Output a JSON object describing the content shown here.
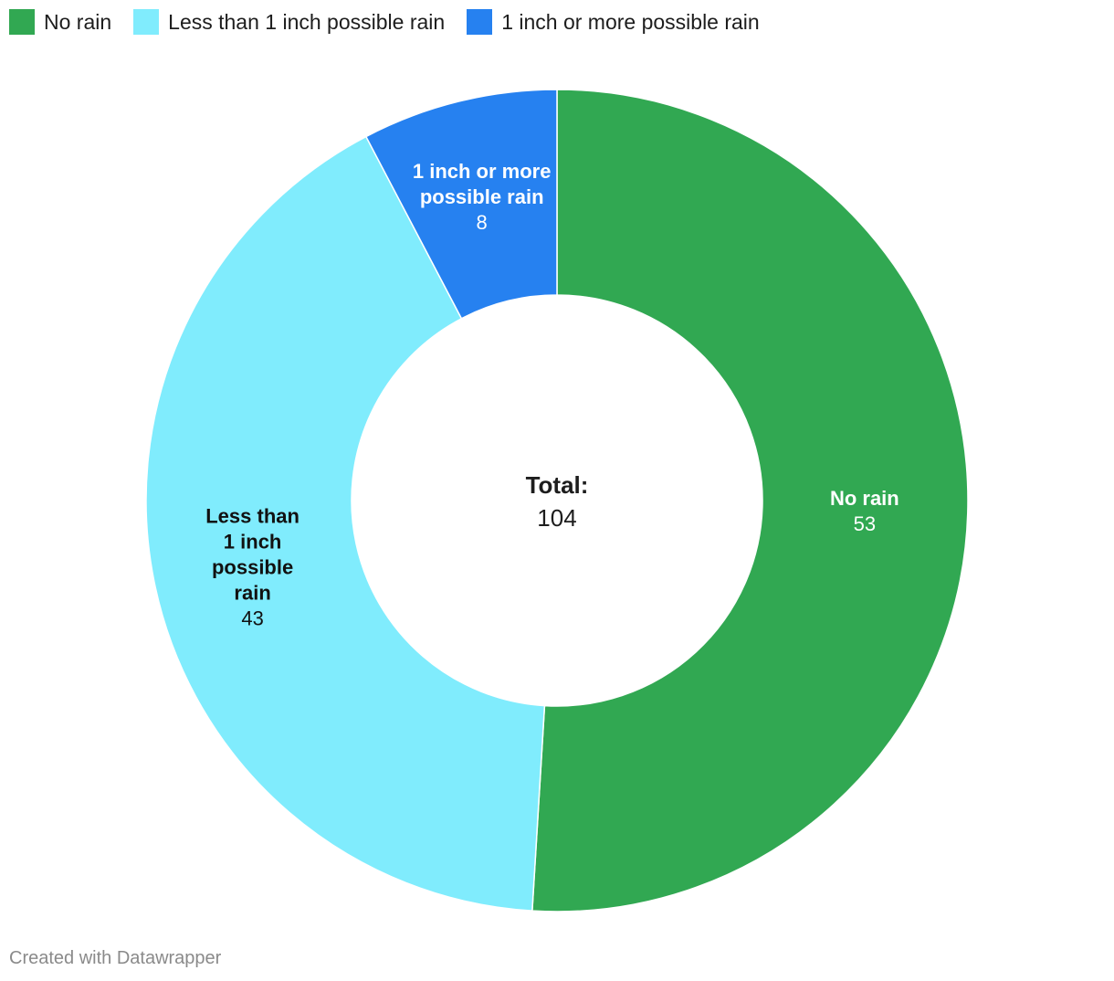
{
  "chart_data": {
    "type": "pie",
    "variant": "donut",
    "categories": [
      "No rain",
      "Less than 1 inch possible rain",
      "1 inch or more possible rain"
    ],
    "values": [
      53,
      43,
      8
    ],
    "colors": [
      "#31a852",
      "#80ecfd",
      "#2681f0"
    ],
    "label_colors": [
      "#ffffff",
      "#111111",
      "#ffffff"
    ],
    "slice_labels": [
      [
        "No rain"
      ],
      [
        "Less than",
        "1 inch",
        "possible",
        "rain"
      ],
      [
        "1 inch or more",
        "possible rain"
      ]
    ],
    "center_title": "Total:",
    "center_value": "104",
    "legend_position": "top-left"
  },
  "legend": {
    "items": [
      {
        "label": "No rain",
        "color": "#31a852"
      },
      {
        "label": "Less than 1 inch possible rain",
        "color": "#80ecfd"
      },
      {
        "label": "1 inch or more possible rain",
        "color": "#2681f0"
      }
    ]
  },
  "footer": {
    "credit": "Created with Datawrapper"
  }
}
